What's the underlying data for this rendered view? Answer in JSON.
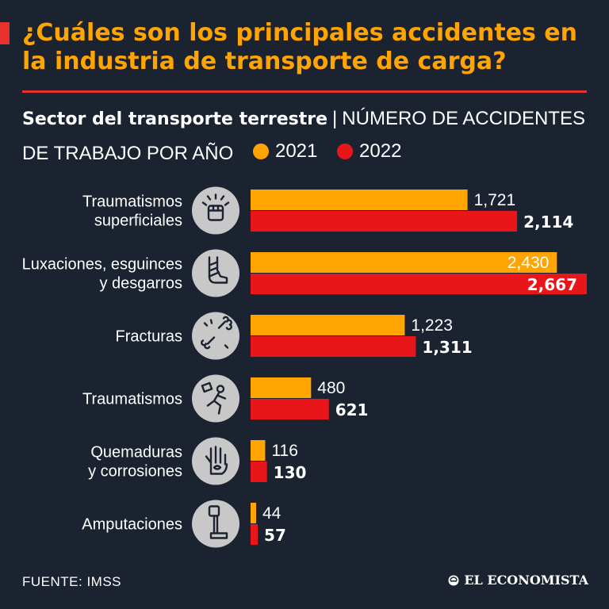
{
  "title": "¿Cuáles son los principales accidentes en la industria de transporte de carga?",
  "subtitle": {
    "sector": "Sector del transporte terrestre",
    "separator": "|",
    "metric_part1": "NÚMERO DE ACCIDENTES",
    "metric_part2": "DE TRABAJO POR AÑO"
  },
  "colors": {
    "background": "#1b2330",
    "accent": "#e8312f",
    "title": "#ffa400",
    "series_2021": "#ffa400",
    "series_2022": "#e8161b",
    "icon_bg": "#c8c8c8"
  },
  "chart_data": {
    "type": "bar",
    "orientation": "horizontal",
    "title": "Sector del transporte terrestre | NÚMERO DE ACCIDENTES DE TRABAJO POR AÑO",
    "categories": [
      [
        "Traumatismos",
        "superficiales"
      ],
      [
        "Luxaciones, esguinces",
        "y desgarros"
      ],
      [
        "Fracturas"
      ],
      [
        "Traumatismos"
      ],
      [
        "Quemaduras",
        "y corrosiones"
      ],
      [
        "Amputaciones"
      ]
    ],
    "icons": [
      "fist-impact-icon",
      "bandaged-foot-icon",
      "broken-bone-icon",
      "falling-person-icon",
      "burned-hand-icon",
      "prosthetic-leg-icon"
    ],
    "series": [
      {
        "name": "2021",
        "color": "#ffa400",
        "values": [
          1721,
          2430,
          1223,
          480,
          116,
          44
        ],
        "labels": [
          "1,721",
          "2,430",
          "1,223",
          "480",
          "116",
          "44"
        ]
      },
      {
        "name": "2022",
        "color": "#e8161b",
        "values": [
          2114,
          2667,
          1311,
          621,
          130,
          57
        ],
        "labels": [
          "2,114",
          "2,667",
          "1,311",
          "621",
          "130",
          "57"
        ]
      }
    ],
    "xlim": [
      0,
      2667
    ],
    "grid": false,
    "legend": "top-left"
  },
  "source": "FUENTE: IMSS",
  "brand": "EL ECONOMISTA"
}
